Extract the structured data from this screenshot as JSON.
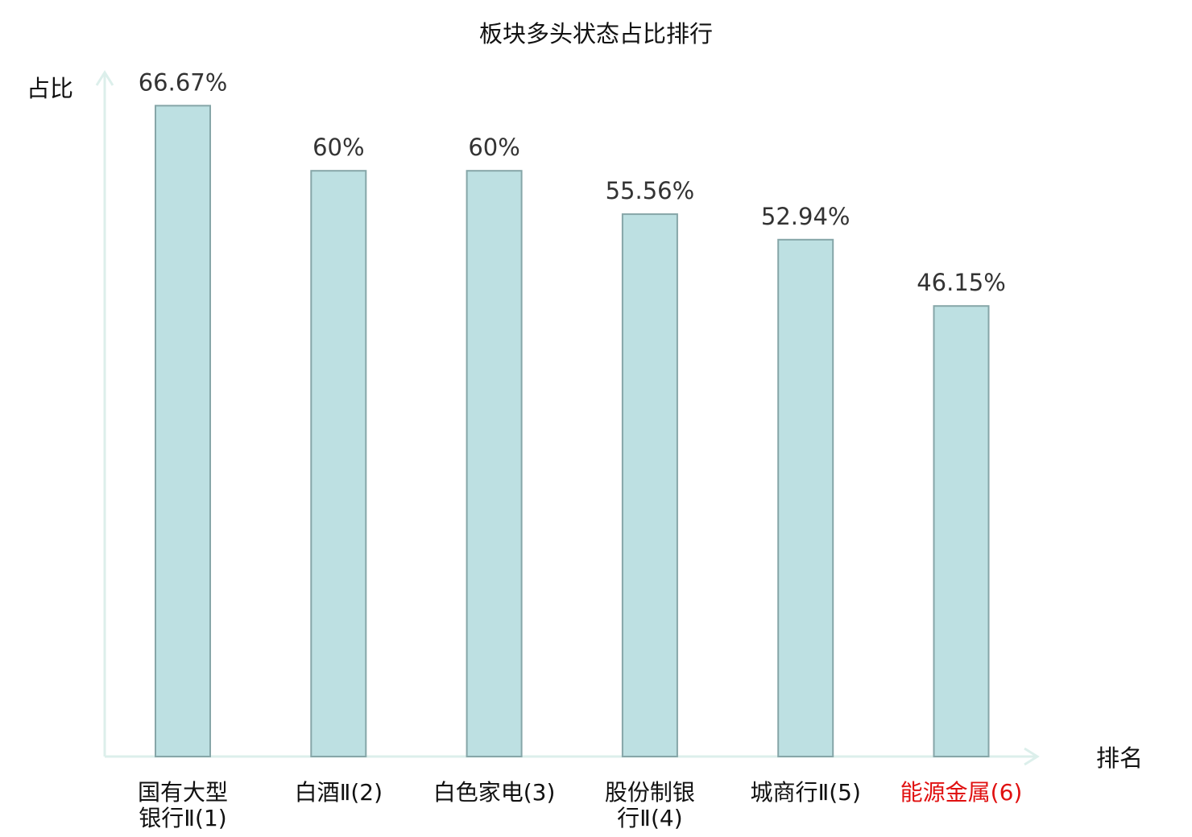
{
  "chart_data": {
    "type": "bar",
    "title": "板块多头状态占比排行",
    "ylabel": "占比",
    "xlabel": "排名",
    "categories": [
      {
        "lines": [
          "国有大型",
          "银行Ⅱ(1)"
        ],
        "highlight": false
      },
      {
        "lines": [
          "白酒Ⅱ(2)"
        ],
        "highlight": false
      },
      {
        "lines": [
          "白色家电(3)"
        ],
        "highlight": false
      },
      {
        "lines": [
          "股份制银",
          "行Ⅱ(4)"
        ],
        "highlight": false
      },
      {
        "lines": [
          "城商行Ⅱ(5)"
        ],
        "highlight": false
      },
      {
        "lines": [
          "能源金属(6)"
        ],
        "highlight": true
      }
    ],
    "values": [
      66.67,
      60,
      60,
      55.56,
      52.94,
      46.15
    ],
    "value_labels": [
      "66.67%",
      "60%",
      "60%",
      "55.56%",
      "52.94%",
      "46.15%"
    ],
    "ylim": [
      0,
      70
    ],
    "grid": false,
    "colors": {
      "bar_fill": "#bde0e2",
      "bar_stroke": "#86a6a8",
      "axis": "#dcefeb",
      "highlight": "#e01010"
    }
  }
}
